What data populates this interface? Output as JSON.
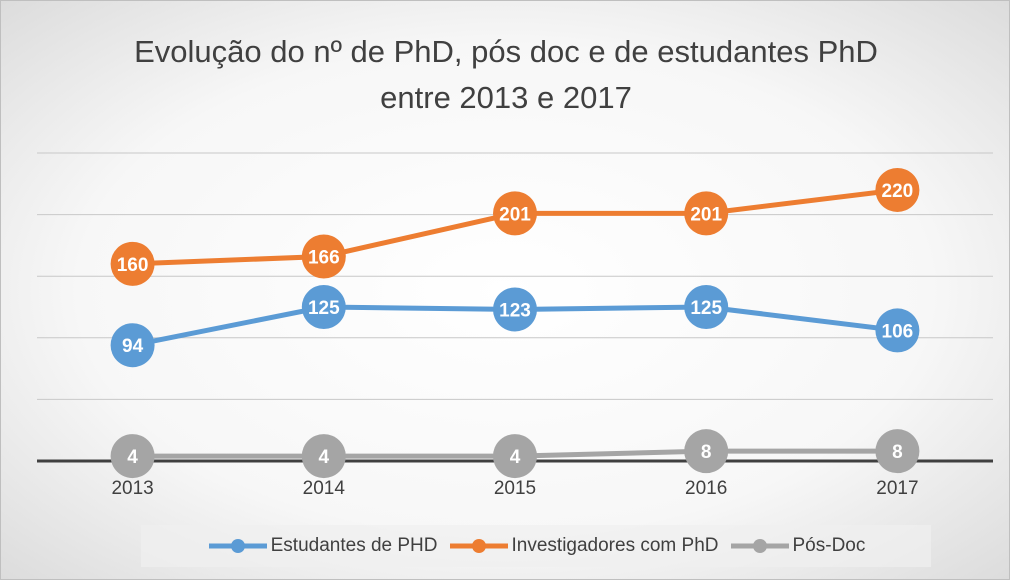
{
  "chart_data": {
    "type": "line",
    "title": "Evolução do nº de PhD, pós doc e de estudantes PhD entre 2013 e 2017",
    "categories": [
      "2013",
      "2014",
      "2015",
      "2016",
      "2017"
    ],
    "series": [
      {
        "name": "Estudantes de PHD",
        "color": "#5b9bd5",
        "values": [
          94,
          125,
          123,
          125,
          106
        ]
      },
      {
        "name": "Investigadores com PhD",
        "color": "#ed7d31",
        "values": [
          160,
          166,
          201,
          201,
          220
        ]
      },
      {
        "name": "Pós-Doc",
        "color": "#a5a5a5",
        "values": [
          4,
          4,
          4,
          8,
          8
        ]
      }
    ],
    "ylim": [
      0,
      250
    ],
    "yticks": [
      0,
      50,
      100,
      150,
      200,
      250
    ],
    "grid": true
  }
}
